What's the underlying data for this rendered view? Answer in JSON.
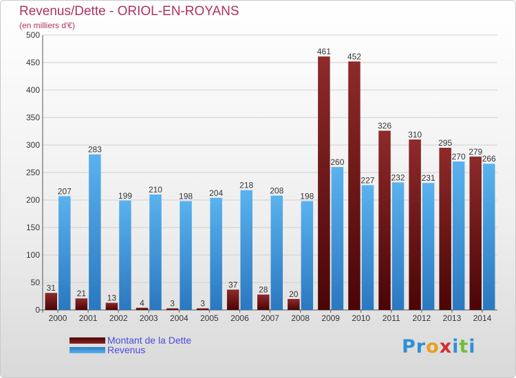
{
  "title": "Revenus/Dette - ORIOL-EN-ROYANS",
  "subtitle": "(en milliers d'€)",
  "colors": {
    "dette": "#7a1a1a",
    "revenus": "#3d98dc",
    "grid": "#cfcfcf",
    "title": "#b03060",
    "legend_text": "#4a4adf"
  },
  "logo": {
    "text": "Proxiti",
    "letters": [
      "P",
      "r",
      "o",
      "x",
      "i",
      "t",
      "i"
    ],
    "colors": [
      "#2f8fd8",
      "#2f8fd8",
      "#e8a020",
      "#d03030",
      "#2f8fd8",
      "#6fbf3a",
      "#2f8fd8"
    ]
  },
  "legend": [
    {
      "label": "Montant de la Dette",
      "color": "#7a1a1a"
    },
    {
      "label": "Revenus",
      "color": "#3d98dc"
    }
  ],
  "chart_data": {
    "type": "bar",
    "title": "Revenus/Dette - ORIOL-EN-ROYANS",
    "subtitle": "(en milliers d'€)",
    "categories": [
      "2000",
      "2001",
      "2002",
      "2003",
      "2004",
      "2005",
      "2006",
      "2007",
      "2008",
      "2009",
      "2010",
      "2011",
      "2012",
      "2013",
      "2014"
    ],
    "series": [
      {
        "name": "Montant de la Dette",
        "values": [
          31,
          21,
          13,
          4,
          3,
          3,
          37,
          28,
          20,
          461,
          452,
          326,
          310,
          295,
          279
        ]
      },
      {
        "name": "Revenus",
        "values": [
          207,
          283,
          199,
          210,
          198,
          204,
          218,
          208,
          198,
          260,
          227,
          232,
          231,
          270,
          266
        ]
      }
    ],
    "ylim": [
      0,
      500
    ],
    "yticks": [
      0,
      50,
      100,
      150,
      200,
      250,
      300,
      350,
      400,
      450,
      500
    ],
    "grid": true,
    "legend_position": "bottom-left"
  }
}
